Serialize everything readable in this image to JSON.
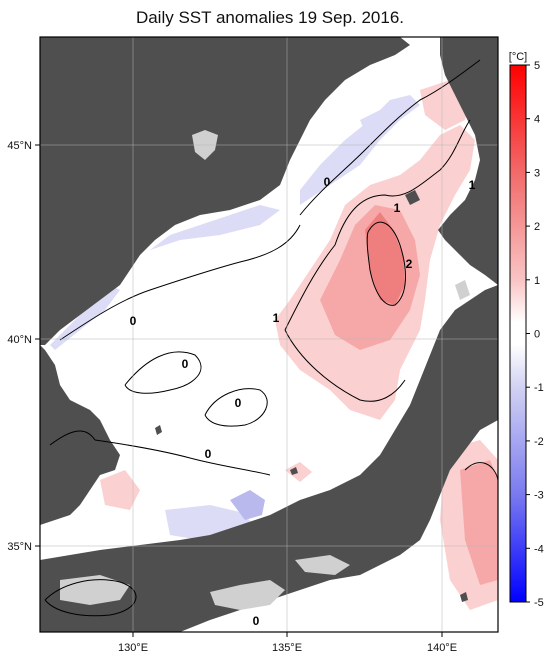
{
  "title": "Daily SST anomalies 19 Sep. 2016.",
  "colorbar": {
    "unit": "[°C]",
    "ticks": [
      "5",
      "4",
      "3",
      "2",
      "1",
      "0",
      "-1",
      "-2",
      "-3",
      "-4",
      "-5"
    ],
    "min": -5,
    "max": 5
  },
  "axes": {
    "lat_labels": [
      "45°N",
      "40°N",
      "35°N"
    ],
    "lon_labels": [
      "130°E",
      "135°E",
      "140°E"
    ]
  },
  "contour_labels": [
    "0",
    "0",
    "0",
    "0",
    "0",
    "0",
    "1",
    "1",
    "1",
    "2"
  ],
  "colors": {
    "land": "#4f4f4f",
    "land_light": "#d0d0d0",
    "ocean_zero": "#ffffff",
    "warm_1": "#fbd0d0",
    "warm_2": "#f6a8a8",
    "warm_3": "#ef7f7f",
    "cool_1": "#dcdcf6",
    "cool_2": "#b9b9ee"
  }
}
